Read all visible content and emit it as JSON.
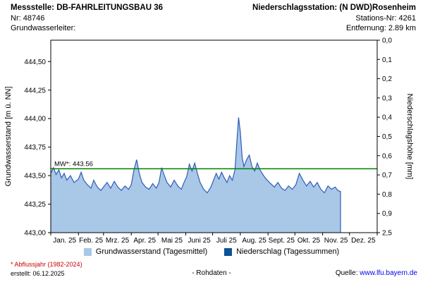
{
  "header": {
    "messstelle": "Messstelle: DB-FAHRLEITUNGSBAU 36",
    "nr": "Nr: 48746",
    "grundwasserleiter": "Grundwasserleiter:",
    "niederschlagsstation": "Niederschlagsstation: (N DWD)Rosenheim",
    "stations_nr": "Stations-Nr: 4261",
    "entfernung": "Entfernung: 2.89 km"
  },
  "chart_data": {
    "type": "area",
    "title": "",
    "x_axis": {
      "unit": "day_of_year_2025",
      "month_labels": [
        "Jan. 25",
        "Feb. 25",
        "Mrz. 25",
        "Apr. 25",
        "Mai 25",
        "Juni 25",
        "Juli 25",
        "Aug. 25",
        "Sept. 25",
        "Okt. 25",
        "Nov. 25",
        "Dez. 25"
      ],
      "month_start_days": [
        0,
        31,
        59,
        90,
        120,
        151,
        181,
        212,
        243,
        273,
        304,
        334,
        365
      ]
    },
    "y_left": {
      "label": "Grundwasserstand [m ü. NN]",
      "tick_labels": [
        "443,00",
        "443,25",
        "443,50",
        "443,75",
        "444,00",
        "444,25",
        "444,50"
      ],
      "tick_values": [
        443.0,
        443.25,
        443.5,
        443.75,
        444.0,
        444.25,
        444.5
      ],
      "plot_range": [
        443.0,
        444.6875
      ]
    },
    "y_right": {
      "label": "Niederschlagshöhe [mm]",
      "tick_labels": [
        "0,0",
        "0,1",
        "0,2",
        "0,3",
        "0,4",
        "0,5",
        "0,6",
        "0,7",
        "0,8",
        "0,9",
        "2,5"
      ],
      "inverted": true
    },
    "mean_line": {
      "label": "MW*: 443.56",
      "value": 443.56
    },
    "series": [
      {
        "name": "Grundwasserstand (Tagesmittel)",
        "type": "area",
        "points": [
          [
            0,
            443.52
          ],
          [
            3,
            443.57
          ],
          [
            6,
            443.51
          ],
          [
            9,
            443.55
          ],
          [
            12,
            443.48
          ],
          [
            15,
            443.52
          ],
          [
            18,
            443.46
          ],
          [
            22,
            443.5
          ],
          [
            26,
            443.44
          ],
          [
            31,
            443.47
          ],
          [
            34,
            443.53
          ],
          [
            37,
            443.46
          ],
          [
            41,
            443.42
          ],
          [
            45,
            443.39
          ],
          [
            48,
            443.46
          ],
          [
            52,
            443.4
          ],
          [
            56,
            443.37
          ],
          [
            59,
            443.4
          ],
          [
            63,
            443.44
          ],
          [
            67,
            443.39
          ],
          [
            71,
            443.45
          ],
          [
            75,
            443.4
          ],
          [
            79,
            443.37
          ],
          [
            83,
            443.41
          ],
          [
            87,
            443.38
          ],
          [
            90,
            443.42
          ],
          [
            93,
            443.55
          ],
          [
            96,
            443.64
          ],
          [
            99,
            443.52
          ],
          [
            102,
            443.44
          ],
          [
            106,
            443.4
          ],
          [
            110,
            443.38
          ],
          [
            114,
            443.43
          ],
          [
            118,
            443.39
          ],
          [
            121,
            443.44
          ],
          [
            124,
            443.57
          ],
          [
            127,
            443.5
          ],
          [
            130,
            443.44
          ],
          [
            134,
            443.4
          ],
          [
            138,
            443.46
          ],
          [
            142,
            443.41
          ],
          [
            146,
            443.38
          ],
          [
            149,
            443.44
          ],
          [
            152,
            443.49
          ],
          [
            155,
            443.6
          ],
          [
            158,
            443.54
          ],
          [
            161,
            443.61
          ],
          [
            164,
            443.52
          ],
          [
            167,
            443.44
          ],
          [
            171,
            443.38
          ],
          [
            175,
            443.35
          ],
          [
            179,
            443.4
          ],
          [
            182,
            443.46
          ],
          [
            185,
            443.52
          ],
          [
            188,
            443.47
          ],
          [
            191,
            443.53
          ],
          [
            194,
            443.48
          ],
          [
            197,
            443.44
          ],
          [
            200,
            443.5
          ],
          [
            203,
            443.46
          ],
          [
            206,
            443.55
          ],
          [
            208,
            443.78
          ],
          [
            210,
            444.01
          ],
          [
            212,
            443.88
          ],
          [
            214,
            443.66
          ],
          [
            216,
            443.58
          ],
          [
            219,
            443.64
          ],
          [
            222,
            443.68
          ],
          [
            225,
            443.58
          ],
          [
            228,
            443.54
          ],
          [
            231,
            443.61
          ],
          [
            234,
            443.55
          ],
          [
            238,
            443.5
          ],
          [
            242,
            443.46
          ],
          [
            246,
            443.43
          ],
          [
            250,
            443.4
          ],
          [
            254,
            443.44
          ],
          [
            258,
            443.39
          ],
          [
            262,
            443.37
          ],
          [
            266,
            443.41
          ],
          [
            270,
            443.38
          ],
          [
            274,
            443.42
          ],
          [
            278,
            443.52
          ],
          [
            282,
            443.46
          ],
          [
            286,
            443.41
          ],
          [
            290,
            443.45
          ],
          [
            294,
            443.4
          ],
          [
            298,
            443.44
          ],
          [
            302,
            443.38
          ],
          [
            306,
            443.35
          ],
          [
            310,
            443.41
          ],
          [
            314,
            443.38
          ],
          [
            318,
            443.4
          ],
          [
            321,
            443.37
          ],
          [
            324,
            443.36
          ]
        ]
      },
      {
        "name": "Niederschlag (Tagessummen)",
        "type": "bar",
        "points": []
      }
    ],
    "colors": {
      "area_fill": "#a9c7e7",
      "line": "#2e5cb8",
      "mean_line": "#008000",
      "precipitation": "#0b5394"
    }
  },
  "legend": {
    "items": [
      {
        "label": "Grundwasserstand (Tagesmittel)",
        "swatch": "#a9c7e7"
      },
      {
        "label": "Niederschlag (Tagessummen)",
        "swatch": "#0b5394"
      }
    ]
  },
  "footer": {
    "note": "* Abflussjahr (1982-2024)",
    "created": "erstellt:  06.12.2025",
    "center": "- Rohdaten -",
    "source_label": "Quelle:",
    "source_link": "www.lfu.bayern.de"
  }
}
